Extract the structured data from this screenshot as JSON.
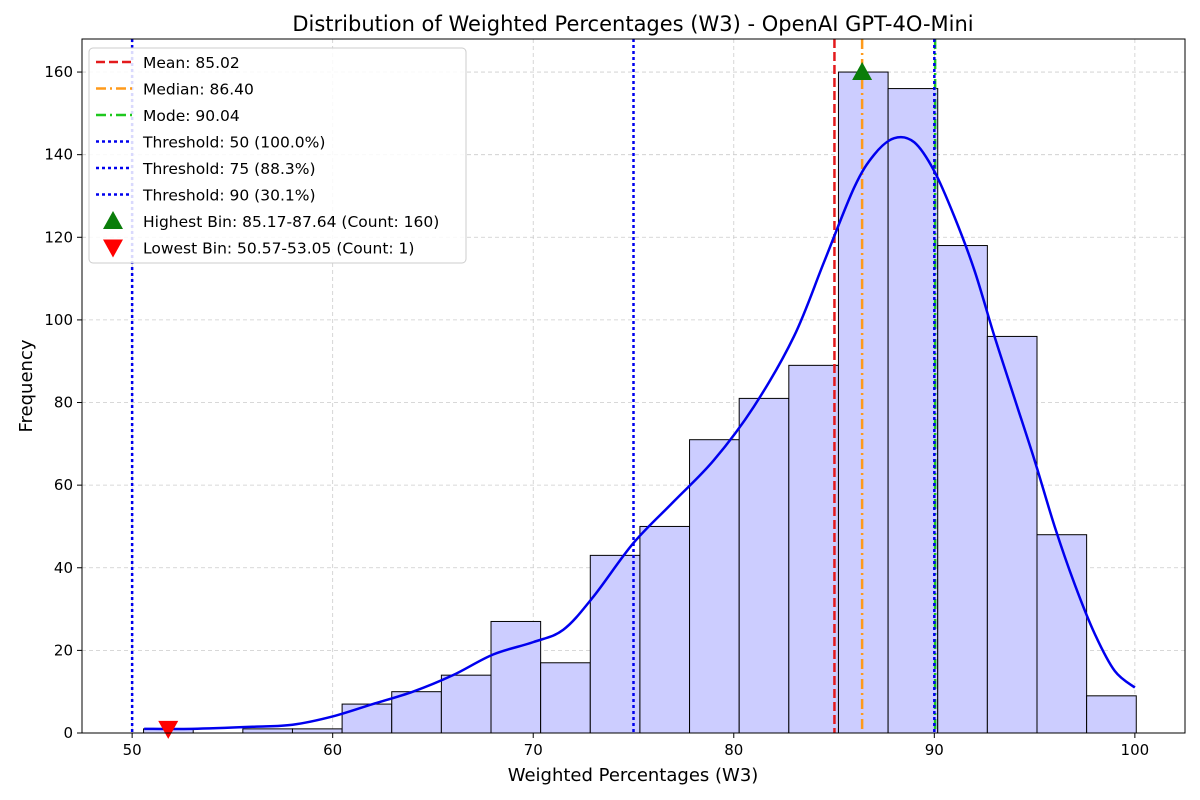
{
  "chart_data": {
    "type": "bar",
    "title": "Distribution of Weighted Percentages (W3) - OpenAI GPT-4O-Mini",
    "xlabel": "Weighted Percentages (W3)",
    "ylabel": "Frequency",
    "xlim": [
      47.5,
      102.5
    ],
    "ylim": [
      0,
      168
    ],
    "xticks": [
      50,
      60,
      70,
      80,
      90,
      100
    ],
    "yticks": [
      0,
      20,
      40,
      60,
      80,
      100,
      120,
      140,
      160
    ],
    "grid": true,
    "bins": {
      "start": 50.57,
      "width": 2.475,
      "counts": [
        1,
        0,
        1,
        1,
        7,
        10,
        14,
        27,
        17,
        43,
        50,
        71,
        81,
        89,
        160,
        156,
        118,
        96,
        48,
        9
      ]
    },
    "kde": {
      "x": [
        50.6,
        53,
        56,
        58,
        60,
        62,
        64,
        66,
        68,
        70,
        71.5,
        73,
        75,
        77,
        79,
        81,
        83,
        84.5,
        86,
        87,
        88,
        89,
        90,
        91,
        92,
        93,
        94,
        95,
        96,
        97,
        98,
        99,
        100
      ],
      "y": [
        1,
        1,
        1.5,
        2,
        4,
        7,
        10,
        14,
        19,
        22,
        25,
        33,
        46,
        56,
        66,
        79,
        96,
        114,
        132,
        140,
        144,
        143,
        136,
        125,
        112,
        96,
        81,
        66,
        50,
        36,
        24,
        15,
        11
      ]
    },
    "vlines": [
      {
        "label": "Mean: 85.02",
        "x": 85.02,
        "color": "#e31a1c",
        "style": "dashed"
      },
      {
        "label": "Median: 86.40",
        "x": 86.4,
        "color": "#ff9a1a",
        "style": "dashdot"
      },
      {
        "label": "Mode: 90.04",
        "x": 90.04,
        "color": "#1ec81e",
        "style": "dashdot"
      },
      {
        "label": "Threshold: 50 (100.0%)",
        "x": 50,
        "color": "#0000ee",
        "style": "dotted"
      },
      {
        "label": "Threshold: 75 (88.3%)",
        "x": 75,
        "color": "#0000ee",
        "style": "dotted"
      },
      {
        "label": "Threshold: 90 (30.1%)",
        "x": 90,
        "color": "#0000ee",
        "style": "dotted"
      }
    ],
    "markers": [
      {
        "label": "Highest Bin: 85.17-87.64 (Count: 160)",
        "x": 86.4,
        "y": 160,
        "shape": "triangle-up",
        "color": "#0a7d0a"
      },
      {
        "label": "Lowest Bin: 50.57-53.05 (Count: 1)",
        "x": 51.8,
        "y": 1,
        "shape": "triangle-down",
        "color": "#ff0000"
      }
    ],
    "legend_position": "top-left",
    "colors": {
      "bar_fill": "#cccdff",
      "bar_edge": "#000000",
      "kde_line": "#0000ee",
      "grid": "#cccccc"
    }
  }
}
